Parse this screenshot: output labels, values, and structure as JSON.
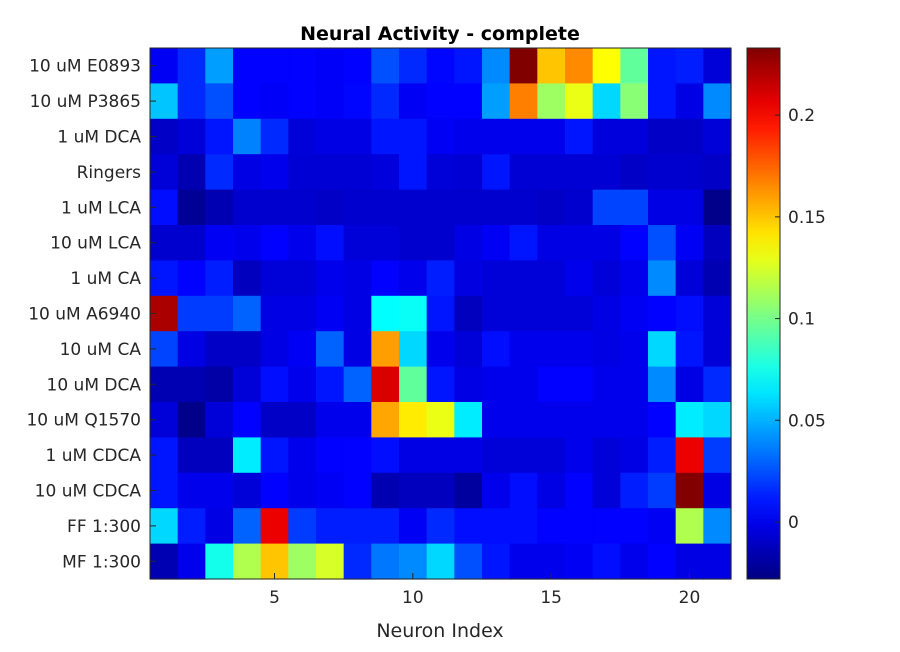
{
  "chart_data": {
    "type": "heatmap",
    "title": "Neural Activity - complete",
    "xlabel": "Neuron Index",
    "ylabel": "",
    "x": [
      1,
      2,
      3,
      4,
      5,
      6,
      7,
      8,
      9,
      10,
      11,
      12,
      13,
      14,
      15,
      16,
      17,
      18,
      19,
      20,
      21
    ],
    "x_ticks": [
      5,
      10,
      15,
      20
    ],
    "rows": [
      "10 uM E0893",
      "10 uM P3865",
      "1 uM DCA",
      "Ringers",
      "1 uM LCA",
      "10 uM LCA",
      "1 uM CA",
      "10 uM A6940",
      "10 uM CA",
      "10 uM DCA",
      "10 uM Q1570",
      "1 uM CDCA",
      "10 uM CDCA",
      "FF 1:300",
      "MF 1:300"
    ],
    "colormap": "jet",
    "clim": [
      -0.028,
      0.233
    ],
    "colorbar_ticks": [
      0,
      0.05,
      0.1,
      0.15,
      0.2
    ],
    "colorbar_tick_labels": [
      "0",
      "0.05",
      "0.1",
      "0.15",
      "0.2"
    ],
    "values": [
      [
        0.002,
        0.015,
        0.045,
        0.005,
        0.005,
        0.005,
        0.003,
        0.005,
        0.025,
        0.015,
        0.006,
        0.01,
        0.04,
        0.233,
        0.15,
        0.165,
        0.135,
        0.095,
        0.01,
        0.012,
        -0.005
      ],
      [
        0.055,
        0.015,
        0.025,
        0.005,
        0.003,
        0.005,
        0.003,
        0.006,
        0.015,
        0.002,
        0.005,
        0.005,
        0.045,
        0.168,
        0.11,
        0.13,
        0.06,
        0.105,
        0.01,
        -0.002,
        0.04
      ],
      [
        -0.01,
        -0.005,
        0.01,
        0.038,
        0.015,
        -0.005,
        -0.002,
        -0.002,
        0.01,
        0.01,
        0.002,
        0.0,
        0.0,
        0.0,
        0.0,
        0.01,
        -0.004,
        -0.004,
        -0.01,
        -0.01,
        -0.005
      ],
      [
        -0.005,
        -0.015,
        0.015,
        -0.002,
        0.0,
        -0.006,
        -0.006,
        -0.006,
        -0.004,
        0.01,
        -0.005,
        -0.006,
        0.01,
        -0.006,
        -0.006,
        -0.006,
        -0.006,
        -0.01,
        -0.008,
        -0.008,
        -0.01
      ],
      [
        0.008,
        -0.022,
        -0.015,
        -0.008,
        -0.008,
        -0.008,
        -0.01,
        -0.008,
        -0.008,
        -0.008,
        -0.008,
        -0.008,
        -0.008,
        -0.008,
        -0.01,
        -0.008,
        0.022,
        0.022,
        -0.002,
        -0.002,
        -0.025
      ],
      [
        -0.008,
        -0.008,
        0.002,
        0.0,
        0.005,
        0.0,
        0.008,
        -0.005,
        -0.005,
        -0.008,
        -0.008,
        -0.002,
        0.002,
        0.01,
        -0.002,
        -0.002,
        -0.002,
        0.005,
        0.025,
        0.002,
        -0.012
      ],
      [
        0.01,
        0.005,
        0.012,
        -0.012,
        -0.005,
        -0.005,
        0.0,
        -0.002,
        0.005,
        0.0,
        0.012,
        -0.003,
        -0.005,
        -0.005,
        -0.005,
        0.0,
        -0.005,
        0.0,
        0.04,
        -0.005,
        -0.015
      ],
      [
        0.222,
        0.02,
        0.02,
        0.03,
        -0.002,
        -0.002,
        0.002,
        -0.002,
        0.07,
        0.072,
        0.01,
        -0.012,
        -0.005,
        -0.005,
        -0.005,
        -0.005,
        -0.002,
        0.002,
        0.005,
        0.008,
        -0.005
      ],
      [
        0.022,
        -0.002,
        -0.01,
        -0.01,
        -0.002,
        0.002,
        0.03,
        -0.002,
        0.16,
        0.06,
        0.0,
        -0.005,
        0.008,
        0.0,
        0.0,
        0.0,
        -0.002,
        0.0,
        0.06,
        0.01,
        -0.005
      ],
      [
        -0.015,
        -0.015,
        -0.018,
        -0.005,
        0.008,
        0.0,
        0.01,
        0.03,
        0.21,
        0.095,
        0.01,
        -0.002,
        0.0,
        0.0,
        0.005,
        0.005,
        0.0,
        0.0,
        0.04,
        -0.002,
        0.015
      ],
      [
        -0.005,
        -0.025,
        -0.005,
        0.005,
        -0.01,
        -0.01,
        0.0,
        0.0,
        0.158,
        0.14,
        0.13,
        0.065,
        0.0,
        0.0,
        0.0,
        0.0,
        0.0,
        0.0,
        0.005,
        0.065,
        0.06
      ],
      [
        0.01,
        -0.012,
        -0.012,
        0.065,
        0.01,
        0.0,
        0.005,
        0.005,
        0.008,
        -0.002,
        -0.002,
        -0.002,
        -0.005,
        -0.005,
        -0.005,
        0.0,
        -0.005,
        -0.002,
        0.012,
        0.205,
        0.02
      ],
      [
        0.01,
        0.0,
        0.0,
        -0.005,
        0.005,
        0.0,
        0.002,
        0.005,
        -0.015,
        -0.012,
        -0.012,
        -0.02,
        0.0,
        0.008,
        -0.002,
        0.005,
        -0.005,
        0.012,
        0.02,
        0.232,
        -0.002
      ],
      [
        0.06,
        0.012,
        -0.002,
        0.03,
        0.205,
        0.02,
        0.012,
        0.012,
        0.012,
        0.002,
        0.015,
        0.008,
        0.008,
        0.008,
        0.005,
        0.005,
        0.005,
        0.005,
        0.002,
        0.115,
        0.04
      ],
      [
        -0.015,
        0.0,
        0.075,
        0.115,
        0.15,
        0.11,
        0.125,
        0.015,
        0.035,
        0.04,
        0.06,
        0.025,
        0.01,
        0.0,
        0.0,
        0.002,
        0.008,
        0.0,
        0.005,
        -0.002,
        -0.002
      ]
    ]
  }
}
